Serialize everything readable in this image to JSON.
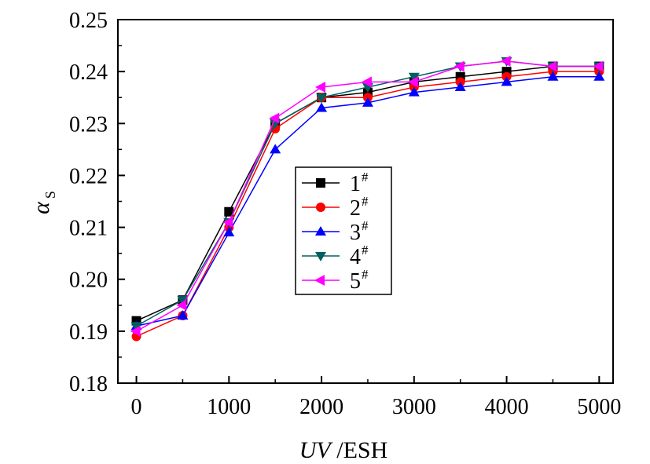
{
  "chart_data": {
    "type": "line",
    "x": [
      0,
      500,
      1000,
      1500,
      2000,
      2500,
      3000,
      3500,
      4000,
      4500,
      5000
    ],
    "xlabel": {
      "italic": "UV",
      "rest": " /ESH"
    },
    "ylabel": {
      "main": "α",
      "sub": "S"
    },
    "xlim": [
      -200,
      5150
    ],
    "ylim": [
      0.18,
      0.25
    ],
    "xticks": [
      0,
      1000,
      2000,
      3000,
      4000,
      5000
    ],
    "xtick_labels": [
      "0",
      "1000",
      "2000",
      "3000",
      "4000",
      "5000"
    ],
    "yticks": [
      0.18,
      0.19,
      0.2,
      0.21,
      0.22,
      0.23,
      0.24,
      0.25
    ],
    "ytick_labels": [
      "0.18",
      "0.19",
      "0.20",
      "0.21",
      "0.22",
      "0.23",
      "0.24",
      "0.25"
    ],
    "grid": false,
    "legend_position": "center",
    "series": [
      {
        "name": "1",
        "sup": "#",
        "color": "#000000",
        "marker": "square",
        "values": [
          0.192,
          0.196,
          0.213,
          0.23,
          0.235,
          0.236,
          0.238,
          0.239,
          0.24,
          0.241,
          0.241
        ]
      },
      {
        "name": "2",
        "sup": "#",
        "color": "#ff0000",
        "marker": "circle",
        "values": [
          0.189,
          0.193,
          0.21,
          0.229,
          0.235,
          0.235,
          0.237,
          0.238,
          0.239,
          0.24,
          0.24
        ]
      },
      {
        "name": "3",
        "sup": "#",
        "color": "#0000ff",
        "marker": "triangle-up",
        "values": [
          0.191,
          0.193,
          0.209,
          0.225,
          0.233,
          0.234,
          0.236,
          0.237,
          0.238,
          0.239,
          0.239
        ]
      },
      {
        "name": "4",
        "sup": "#",
        "color": "#006060",
        "marker": "triangle-down",
        "values": [
          0.191,
          0.196,
          0.211,
          0.23,
          0.235,
          0.237,
          0.239,
          0.241,
          0.242,
          0.241,
          0.241
        ]
      },
      {
        "name": "5",
        "sup": "#",
        "color": "#ff00ff",
        "marker": "triangle-left",
        "values": [
          0.19,
          0.195,
          0.211,
          0.231,
          0.237,
          0.238,
          0.238,
          0.241,
          0.242,
          0.241,
          0.241
        ]
      }
    ]
  }
}
